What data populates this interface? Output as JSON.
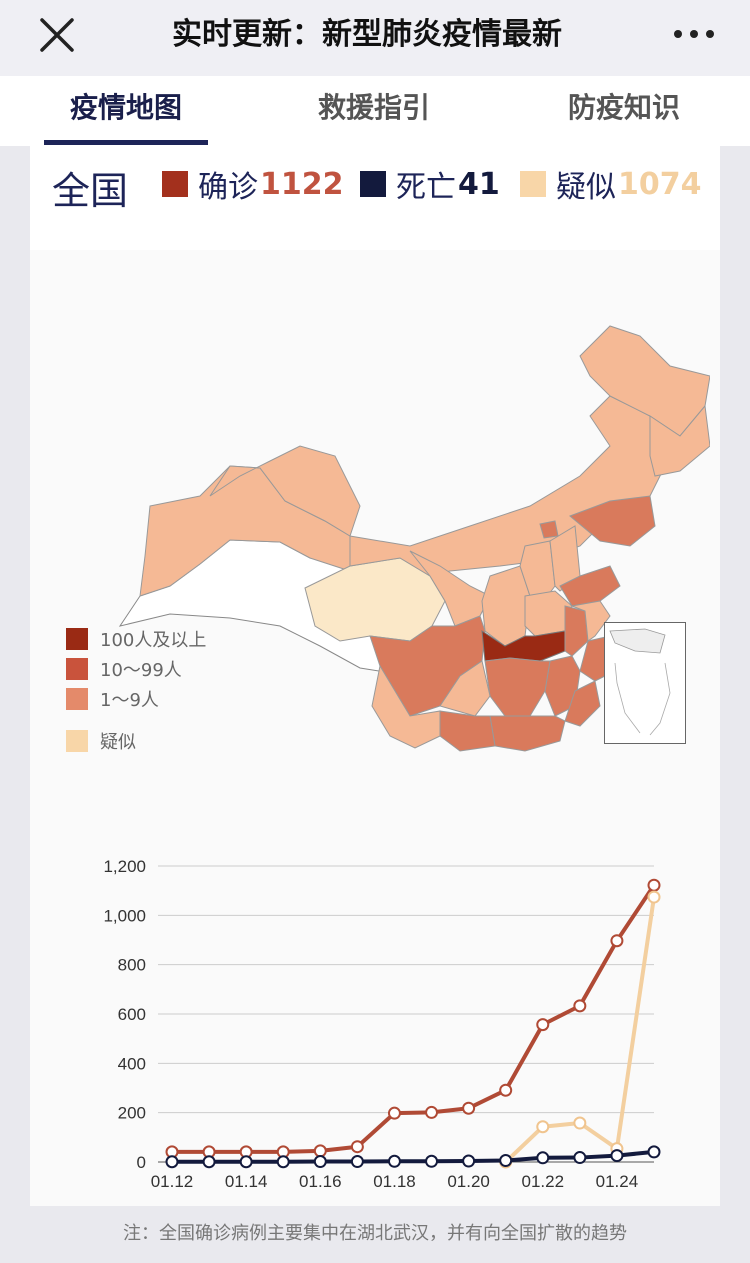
{
  "header": {
    "title": "实时更新：新型肺炎疫情最新",
    "close_icon": "close-icon",
    "more_icon": "more-dots-icon"
  },
  "tabs": [
    {
      "label": "疫情地图",
      "active": true
    },
    {
      "label": "救援指引",
      "active": false
    },
    {
      "label": "防疫知识",
      "active": false
    }
  ],
  "summary": {
    "region": "全国",
    "confirmed": {
      "label": "确诊",
      "value": "1122",
      "color": "#a3301d",
      "value_color": "#c0533f"
    },
    "deaths": {
      "label": "死亡",
      "value": "41",
      "color": "#131a3d",
      "value_color": "#131a3d"
    },
    "suspected": {
      "label": "疑似",
      "value": "1074",
      "color": "#f8d6a8",
      "value_color": "#f3cf9f"
    }
  },
  "map": {
    "legend": [
      {
        "label": "100人及以上",
        "color": "#9a2a14"
      },
      {
        "label": "10～99人",
        "color": "#c9533c"
      },
      {
        "label": "1～9人",
        "color": "#e48a6a"
      },
      {
        "label": "疑似",
        "color": "#f8d6a8"
      }
    ],
    "colors": {
      "hubei": "#9a2a14",
      "mid": "#d97a5c",
      "light": "#f5b995",
      "suspect": "#fbe8c8",
      "none": "#ffffff"
    }
  },
  "chart_data": {
    "type": "line",
    "x": [
      "01.12",
      "01.13",
      "01.14",
      "01.15",
      "01.16",
      "01.17",
      "01.18",
      "01.19",
      "01.20",
      "01.21",
      "01.22",
      "01.23",
      "01.24",
      "01.25"
    ],
    "x_tick_labels": [
      "01.12",
      "01.14",
      "01.16",
      "01.18",
      "01.20",
      "01.22",
      "01.24"
    ],
    "ylim": [
      0,
      1200
    ],
    "yticks": [
      "0",
      "200",
      "400",
      "600",
      "800",
      "1,000",
      "1,200"
    ],
    "grid": true,
    "series": [
      {
        "color": "#b04a35",
        "values": [
          41,
          41,
          41,
          41,
          45,
          62,
          198,
          201,
          218,
          291,
          557,
          633,
          897,
          1122
        ]
      },
      {
        "color": "#f3cf9f",
        "values": [
          null,
          null,
          null,
          null,
          null,
          null,
          null,
          null,
          null,
          0,
          143,
          158,
          54,
          1074
        ]
      },
      {
        "color": "#131a3d",
        "values": [
          1,
          1,
          1,
          1,
          2,
          2,
          3,
          3,
          4,
          6,
          17,
          18,
          26,
          41
        ]
      }
    ]
  },
  "footer": {
    "note": "注：全国确诊病例主要集中在湖北武汉，并有向全国扩散的趋势"
  }
}
